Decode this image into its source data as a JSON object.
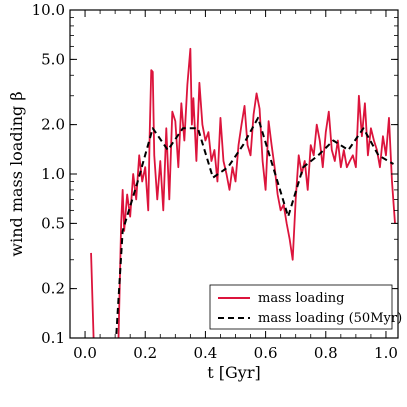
{
  "chart_data": {
    "type": "line",
    "xlabel": "t [Gyr]",
    "ylabel": "wind mass loading β",
    "xlim": [
      -0.05,
      1.04
    ],
    "ylim": [
      0.1,
      10.0
    ],
    "yscale": "log",
    "xticks": [
      0.0,
      0.2,
      0.4,
      0.6,
      0.8,
      1.0
    ],
    "xtick_labels": [
      "0.0",
      "0.2",
      "0.4",
      "0.6",
      "0.8",
      "1.0"
    ],
    "yticks": [
      0.1,
      0.2,
      0.5,
      1.0,
      2.0,
      5.0,
      10.0
    ],
    "ytick_labels": [
      "0.1",
      "0.2",
      "0.5",
      "1.0",
      "2.0",
      "5.0",
      "10.0"
    ],
    "grid": false,
    "legend_position": "bottom-right",
    "series": [
      {
        "name": "mass loading",
        "color": "#dc143c",
        "style": "solid",
        "x": [
          0.02,
          0.03,
          0.09,
          0.1,
          0.11,
          0.12,
          0.125,
          0.13,
          0.14,
          0.15,
          0.16,
          0.17,
          0.18,
          0.19,
          0.2,
          0.21,
          0.215,
          0.22,
          0.225,
          0.23,
          0.24,
          0.25,
          0.26,
          0.27,
          0.28,
          0.29,
          0.3,
          0.31,
          0.32,
          0.33,
          0.34,
          0.35,
          0.355,
          0.36,
          0.37,
          0.38,
          0.39,
          0.4,
          0.41,
          0.42,
          0.43,
          0.44,
          0.45,
          0.46,
          0.47,
          0.48,
          0.49,
          0.5,
          0.51,
          0.52,
          0.53,
          0.54,
          0.55,
          0.56,
          0.57,
          0.58,
          0.59,
          0.6,
          0.61,
          0.62,
          0.63,
          0.64,
          0.65,
          0.66,
          0.67,
          0.68,
          0.69,
          0.7,
          0.71,
          0.72,
          0.73,
          0.74,
          0.75,
          0.76,
          0.77,
          0.78,
          0.79,
          0.8,
          0.81,
          0.82,
          0.83,
          0.84,
          0.85,
          0.86,
          0.87,
          0.88,
          0.89,
          0.9,
          0.91,
          0.92,
          0.93,
          0.94,
          0.95,
          0.96,
          0.97,
          0.98,
          0.99,
          1.0,
          1.01,
          1.02,
          1.03
        ],
        "y": [
          0.33,
          0.08,
          0.08,
          0.08,
          0.08,
          0.5,
          0.8,
          0.45,
          0.75,
          0.55,
          1.0,
          0.7,
          1.3,
          0.9,
          1.1,
          0.6,
          1.8,
          4.3,
          4.2,
          1.3,
          0.7,
          1.2,
          0.6,
          1.9,
          0.7,
          2.4,
          2.1,
          1.1,
          2.7,
          1.6,
          3.5,
          5.8,
          2.0,
          2.9,
          1.2,
          3.6,
          2.0,
          1.6,
          1.8,
          1.2,
          1.4,
          0.9,
          2.2,
          1.2,
          1.0,
          0.8,
          1.1,
          0.9,
          1.5,
          2.0,
          2.6,
          1.5,
          1.3,
          2.3,
          3.1,
          2.5,
          1.2,
          0.8,
          2.1,
          1.5,
          1.1,
          0.75,
          0.6,
          0.65,
          0.5,
          0.4,
          0.3,
          0.7,
          1.3,
          1.0,
          1.2,
          0.8,
          1.5,
          1.3,
          2.0,
          1.6,
          1.1,
          1.8,
          2.4,
          1.4,
          1.2,
          1.6,
          1.1,
          1.4,
          1.1,
          1.2,
          1.3,
          1.1,
          3.0,
          1.7,
          2.7,
          1.3,
          1.9,
          1.6,
          1.4,
          1.1,
          1.7,
          1.3,
          2.2,
          0.9,
          0.5
        ],
        "extends_below_axis": true
      },
      {
        "name": "mass loading (50Myr)",
        "color": "#000000",
        "style": "dashed",
        "x": [
          0.1,
          0.125,
          0.175,
          0.225,
          0.275,
          0.325,
          0.375,
          0.425,
          0.475,
          0.525,
          0.575,
          0.625,
          0.675,
          0.725,
          0.775,
          0.825,
          0.875,
          0.925,
          0.975,
          1.025
        ],
        "y": [
          0.08,
          0.45,
          0.9,
          1.9,
          1.4,
          1.9,
          1.9,
          0.95,
          1.1,
          1.5,
          2.2,
          1.1,
          0.55,
          1.1,
          1.3,
          1.6,
          1.4,
          1.9,
          1.3,
          1.15
        ]
      }
    ]
  }
}
